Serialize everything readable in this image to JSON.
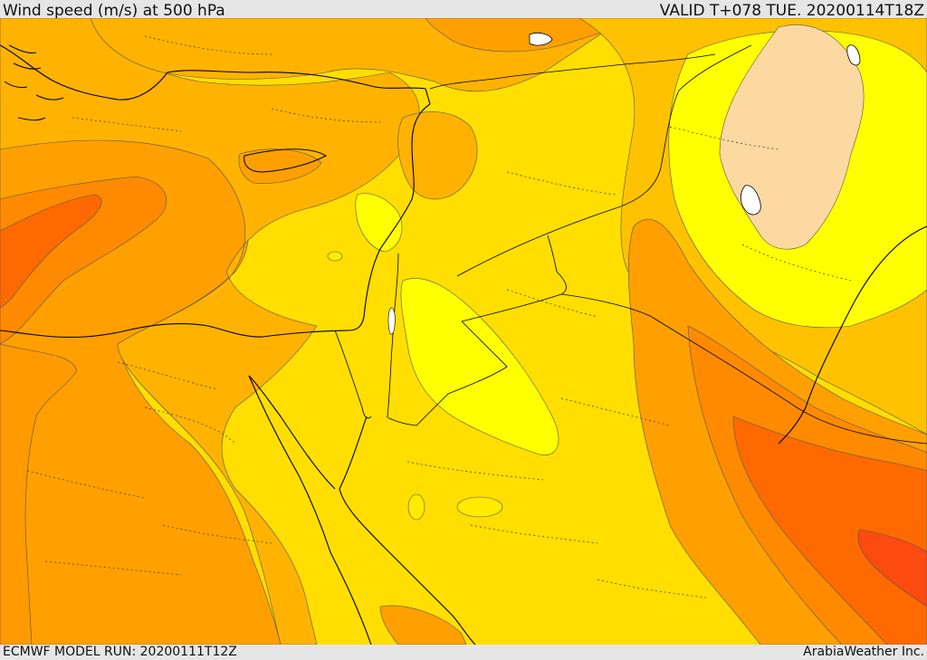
{
  "header": {
    "title": "Wind speed (m/s) at 500 hPa",
    "valid": "VALID T+078 TUE. 20200114T18Z"
  },
  "footer": {
    "model_run": "ECMWF MODEL RUN: 20200111T12Z",
    "credit": "ArabiaWeather Inc."
  },
  "map": {
    "field": "Wind speed (m/s) at 500 hPa",
    "palette": {
      "wheat": "#fcd9a0",
      "yellow": "#ffff00",
      "yellow_light": "#ffeb00",
      "yellow_gold": "#ffde00",
      "amber": "#ffc200",
      "amber_dark": "#ffb300",
      "orange": "#ffa000",
      "orange_dark": "#ff8a00",
      "red_orange": "#ff6a00",
      "red": "#ff4a10"
    },
    "line_colors": {
      "coast": "#000000",
      "border": "#000000",
      "province": "#333333",
      "contour": "#555555"
    },
    "water_color": "#ffffff"
  }
}
